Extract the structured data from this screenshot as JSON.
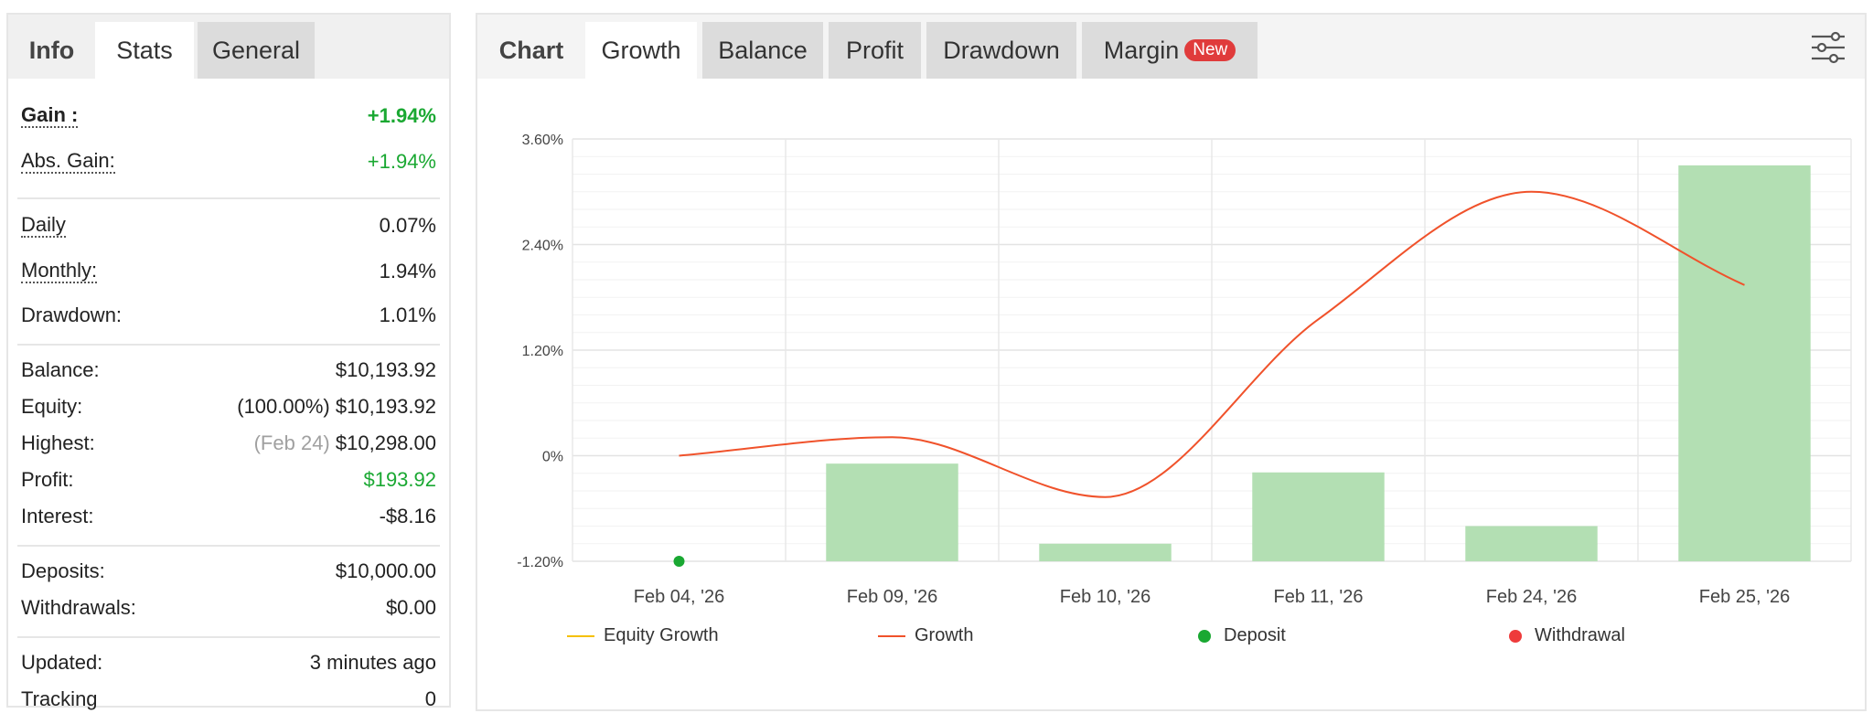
{
  "left": {
    "tabs": [
      "Info",
      "Stats",
      "General"
    ],
    "rows": {
      "gain": {
        "label": "Gain :",
        "value": "+1.94%"
      },
      "abs_gain": {
        "label": "Abs. Gain:",
        "value": "+1.94%"
      },
      "daily": {
        "label": "Daily",
        "value": "0.07%"
      },
      "monthly": {
        "label": "Monthly:",
        "value": "1.94%"
      },
      "drawdown": {
        "label": "Drawdown:",
        "value": "1.01%"
      },
      "balance": {
        "label": "Balance:",
        "value": "$10,193.92"
      },
      "equity": {
        "label": "Equity:",
        "sub": "(100.00%)",
        "value": "$10,193.92"
      },
      "highest": {
        "label": "Highest:",
        "sub": "(Feb 24)",
        "value": "$10,298.00"
      },
      "profit": {
        "label": "Profit:",
        "value": "$193.92"
      },
      "interest": {
        "label": "Interest:",
        "value": "-$8.16"
      },
      "deposits": {
        "label": "Deposits:",
        "value": "$10,000.00"
      },
      "withdrawals": {
        "label": "Withdrawals:",
        "value": "$0.00"
      },
      "updated": {
        "label": "Updated:",
        "value": "3 minutes ago"
      },
      "tracking": {
        "label": "Tracking",
        "value": "0"
      }
    }
  },
  "right": {
    "tabs": [
      "Chart",
      "Growth",
      "Balance",
      "Profit",
      "Drawdown",
      "Margin"
    ],
    "badge": "New",
    "filter_icon": "filter-sliders-icon"
  },
  "chart_data": {
    "type": "bar",
    "categories": [
      "Feb 04, '26",
      "Feb 09, '26",
      "Feb 10, '26",
      "Feb 11, '26",
      "Feb 24, '26",
      "Feb 25, '26"
    ],
    "ylim": [
      -1.2,
      3.6
    ],
    "yticks": [
      "3.60%",
      "2.40%",
      "1.20%",
      "0%",
      "-1.20%"
    ],
    "ytick_values": [
      3.6,
      2.4,
      1.2,
      0,
      -1.2
    ],
    "series": [
      {
        "name": "Growth",
        "type": "bar",
        "color": "#b3dfb3",
        "values": [
          null,
          -0.09,
          -1.0,
          -0.19,
          -0.8,
          3.3
        ]
      },
      {
        "name": "Growth",
        "type": "line",
        "color": "#f0522b",
        "values": [
          0.0,
          0.21,
          -0.47,
          1.55,
          3.0,
          1.94
        ]
      },
      {
        "name": "Deposit",
        "type": "marker",
        "color": "#1aa832",
        "values": [
          -1.2,
          null,
          null,
          null,
          null,
          null
        ]
      }
    ],
    "legend": [
      {
        "name": "Equity Growth",
        "color": "#f5c000",
        "kind": "line"
      },
      {
        "name": "Growth",
        "color": "#f0522b",
        "kind": "line"
      },
      {
        "name": "Deposit",
        "color": "#1aa832",
        "kind": "dot"
      },
      {
        "name": "Withdrawal",
        "color": "#ee3b3b",
        "kind": "dot"
      }
    ],
    "legend_position": "bottom",
    "grid": true
  }
}
